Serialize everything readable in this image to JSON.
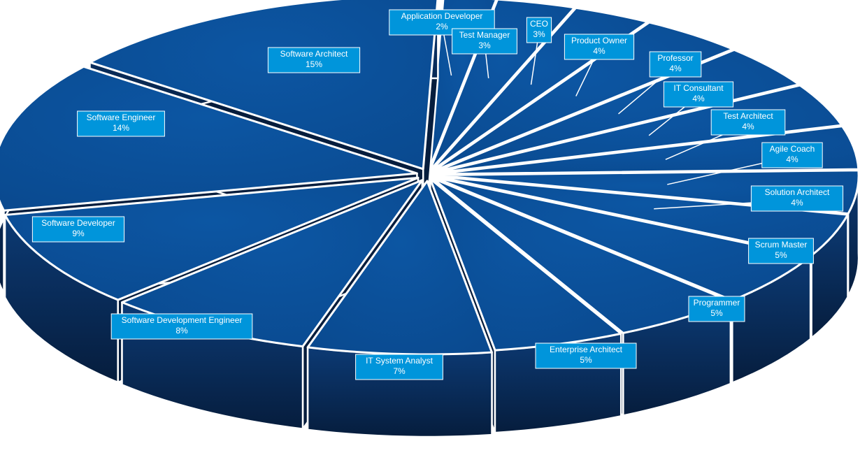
{
  "chart_data": {
    "type": "pie",
    "style": "3d-exploded",
    "title": "",
    "categories": [
      "Application Developer",
      "Test Manager",
      "CEO",
      "Product Owner",
      "Professor",
      "IT Consultant",
      "Test Architect",
      "Agile Coach",
      "Solution Architect",
      "Scrum Master",
      "Programmer",
      "Enterprise Architect",
      "IT System Analyst",
      "Software Development Engineer",
      "Software Developer",
      "Software Engineer",
      "Software Architect"
    ],
    "values": [
      2,
      3,
      3,
      4,
      4,
      4,
      4,
      4,
      4,
      5,
      5,
      5,
      7,
      8,
      9,
      14,
      15
    ],
    "value_labels": [
      "2%",
      "3%",
      "3%",
      "4%",
      "4%",
      "4%",
      "4%",
      "4%",
      "4%",
      "5%",
      "5%",
      "5%",
      "7%",
      "8%",
      "9%",
      "14%",
      "15%"
    ],
    "label_placement": "leader-lines-callouts",
    "legend": "none",
    "colors": {
      "slice_top": "#0a4a90",
      "slice_side": "#0c3a74",
      "slice_dark": "#061d3d",
      "outline": "#ffffff",
      "label_box": "#0095db",
      "label_text": "#ffffff"
    }
  }
}
